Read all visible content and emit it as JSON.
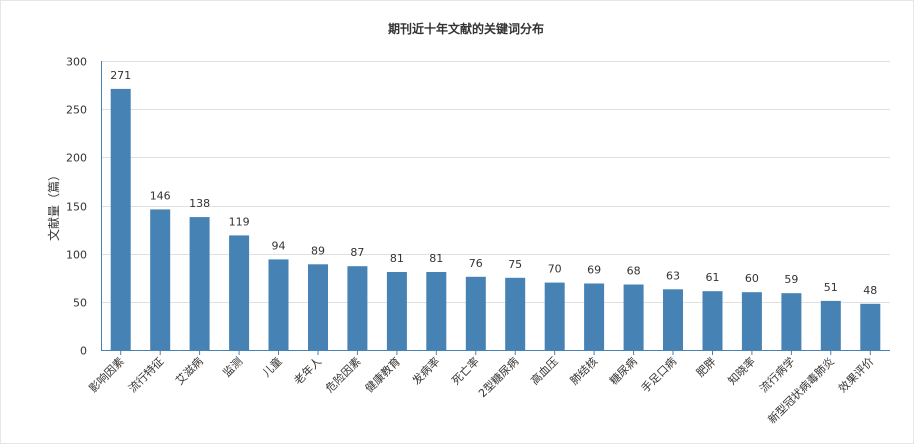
{
  "chart_data": {
    "type": "bar",
    "title": "期刊近十年文献的关键词分布",
    "xlabel": "",
    "ylabel": "文献量（篇）",
    "ylim": [
      0,
      300
    ],
    "yticks": [
      0,
      50,
      100,
      150,
      200,
      250,
      300
    ],
    "grid": true,
    "legend": "none",
    "categories": [
      "影响因素",
      "流行特征",
      "艾滋病",
      "监测",
      "儿童",
      "老年人",
      "危险因素",
      "健康教育",
      "发病率",
      "死亡率",
      "2型糖尿病",
      "高血压",
      "肺结核",
      "糖尿病",
      "手足口病",
      "肥胖",
      "知晓率",
      "流行病学",
      "新型冠状病毒肺炎",
      "效果评价"
    ],
    "values": [
      271,
      146,
      138,
      119,
      94,
      89,
      87,
      81,
      81,
      76,
      75,
      70,
      69,
      68,
      63,
      61,
      60,
      59,
      51,
      48
    ],
    "bar_color": "#4682b4"
  }
}
